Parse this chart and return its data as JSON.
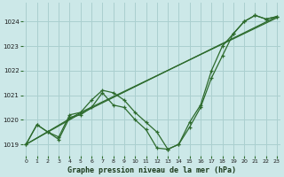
{
  "title": "Graphe pression niveau de la mer (hPa)",
  "bg_color": "#cce8e8",
  "grid_color": "#aacfcf",
  "line_color": "#2d6b2d",
  "xlim": [
    -0.3,
    23.3
  ],
  "ylim": [
    1018.55,
    1024.75
  ],
  "yticks": [
    1019,
    1020,
    1021,
    1022,
    1023,
    1024
  ],
  "xticks": [
    0,
    1,
    2,
    3,
    4,
    5,
    6,
    7,
    8,
    9,
    10,
    11,
    12,
    13,
    14,
    15,
    16,
    17,
    18,
    19,
    20,
    21,
    22,
    23
  ],
  "line_main": [
    1019.0,
    1019.8,
    1019.5,
    1019.2,
    1020.1,
    1020.2,
    1020.5,
    1021.1,
    1020.6,
    1020.5,
    1020.0,
    1019.6,
    1018.85,
    1018.8,
    1019.0,
    1019.7,
    1020.5,
    1021.7,
    1022.6,
    1023.5,
    1024.0,
    1024.25,
    1024.1,
    1024.2
  ],
  "line2": [
    1019.0,
    1019.8,
    1019.5,
    1019.3,
    1020.2,
    1020.3,
    1020.8,
    1021.2,
    1021.1,
    1020.8,
    1020.3,
    1019.9,
    1019.5,
    1018.8,
    1019.0,
    1019.9,
    1020.6,
    1022.0,
    1023.0,
    1023.5,
    1024.0,
    1024.25,
    1024.1,
    1024.2
  ],
  "line3_x": [
    0,
    5,
    23
  ],
  "line3_y": [
    1019.0,
    1020.25,
    1024.2
  ],
  "line4_x": [
    0,
    5,
    23
  ],
  "line4_y": [
    1019.0,
    1020.3,
    1024.15
  ]
}
